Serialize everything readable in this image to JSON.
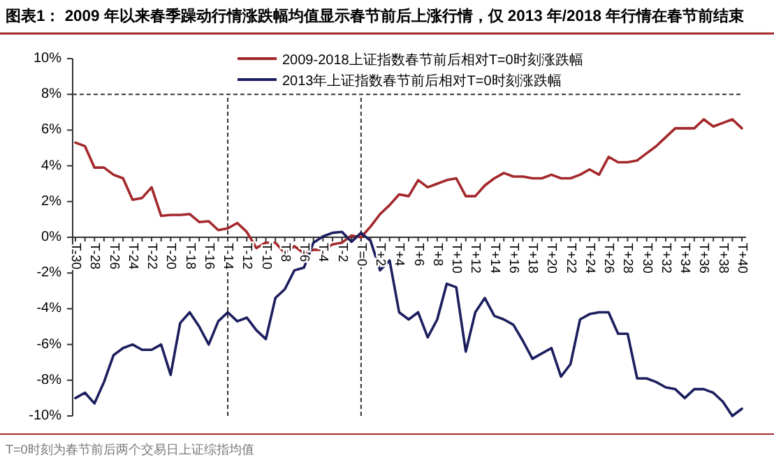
{
  "chart_data": {
    "type": "line",
    "title": "图表1：  2009 年以来春季躁动行情涨跌幅均值显示春节前后上涨行情，仅 2013 年/2018 年行情在春节前结束",
    "annotations": [
      "T=0时刻为春节前后两个交易日上证综指均值"
    ],
    "categories": [
      "T-30",
      null,
      "T-28",
      null,
      "T-26",
      null,
      "T-24",
      null,
      "T-22",
      null,
      "T-20",
      null,
      "T-18",
      null,
      "T-16",
      null,
      "T-14",
      null,
      "T-12",
      null,
      "T-10",
      null,
      "T-8",
      null,
      "T-6",
      null,
      "T-4",
      null,
      "T-2",
      null,
      "T=0",
      null,
      "T+2",
      null,
      "T+4",
      null,
      "T+6",
      null,
      "T+8",
      null,
      "T+10",
      null,
      "T+12",
      null,
      "T+14",
      null,
      "T+16",
      null,
      "T+18",
      null,
      "T+20",
      null,
      "T+22",
      null,
      "T+24",
      null,
      "T+26",
      null,
      "T+28",
      null,
      "T+30",
      null,
      "T+32",
      null,
      "T+34",
      null,
      "T+36",
      null,
      "T+38",
      null,
      "T+40"
    ],
    "series": [
      {
        "name": "2009-2018上证指数春节前后相对T=0时刻涨跌幅",
        "color": "#a3282b",
        "values": [
          5.3,
          5.1,
          3.9,
          3.9,
          3.5,
          3.3,
          2.1,
          2.2,
          2.8,
          1.2,
          1.25,
          1.25,
          1.3,
          0.85,
          0.9,
          0.4,
          0.5,
          0.8,
          0.3,
          -0.6,
          -0.3,
          -0.3,
          -0.9,
          -0.5,
          -0.9,
          -0.7,
          -0.7,
          -0.4,
          -0.3,
          0.1,
          0,
          0.6,
          1.3,
          1.8,
          2.4,
          2.3,
          3.2,
          2.8,
          3.0,
          3.2,
          3.3,
          2.3,
          2.3,
          2.9,
          3.3,
          3.6,
          3.4,
          3.4,
          3.3,
          3.3,
          3.5,
          3.3,
          3.3,
          3.5,
          3.8,
          3.5,
          4.5,
          4.2,
          4.2,
          4.3,
          4.7,
          5.1,
          5.6,
          6.1,
          6.1,
          6.1,
          6.6,
          6.2,
          6.4,
          6.6,
          6.1
        ]
      },
      {
        "name": "2013年上证指数春节前后相对T=0时刻涨跌幅",
        "color": "#1c1f5e",
        "values": [
          -9.0,
          -8.7,
          -9.3,
          -8.1,
          -6.6,
          -6.2,
          -6.0,
          -6.3,
          -6.3,
          -6.0,
          -7.7,
          -4.8,
          -4.2,
          -5.0,
          -6.0,
          -4.7,
          -4.2,
          -4.7,
          -4.5,
          -5.2,
          -5.7,
          -3.4,
          -2.9,
          -1.85,
          -1.7,
          -0.3,
          0.05,
          0.25,
          0.3,
          -0.25,
          0.25,
          -0.2,
          -1.85,
          -1.3,
          -4.2,
          -4.6,
          -4.2,
          -5.6,
          -4.6,
          -2.6,
          -2.8,
          -6.4,
          -4.2,
          -3.4,
          -4.4,
          -4.6,
          -4.9,
          -5.8,
          -6.8,
          -6.5,
          -6.2,
          -7.8,
          -7.1,
          -4.6,
          -4.3,
          -4.2,
          -4.2,
          -5.4,
          -5.4,
          -7.9,
          -7.9,
          -8.1,
          -8.4,
          -8.5,
          -9.0,
          -8.5,
          -8.5,
          -8.7,
          -9.2,
          -10.0,
          -9.6
        ]
      }
    ],
    "ylim": [
      -10,
      10
    ],
    "yticks": [
      {
        "value": -10,
        "label": "-10%"
      },
      {
        "value": -8,
        "label": "-8%"
      },
      {
        "value": -6,
        "label": "-6%"
      },
      {
        "value": -4,
        "label": "-4%"
      },
      {
        "value": -2,
        "label": "-2%"
      },
      {
        "value": 0,
        "label": "0%"
      },
      {
        "value": 2,
        "label": "2%"
      },
      {
        "value": 4,
        "label": "4%"
      },
      {
        "value": 6,
        "label": "6%"
      },
      {
        "value": 8,
        "label": "8%"
      },
      {
        "value": 10,
        "label": "10%"
      }
    ],
    "ref_lines": [
      {
        "axis": "x",
        "value": "T-14",
        "line_style": "dashed",
        "color": "#333333"
      },
      {
        "axis": "x",
        "value": "T=0",
        "line_style": "dashed",
        "color": "#333333"
      },
      {
        "axis": "y",
        "value": 8,
        "line_style": "dashed",
        "color": "#333333"
      }
    ],
    "grid": false,
    "legend": "top",
    "marker": "none",
    "line_style": "solid"
  }
}
